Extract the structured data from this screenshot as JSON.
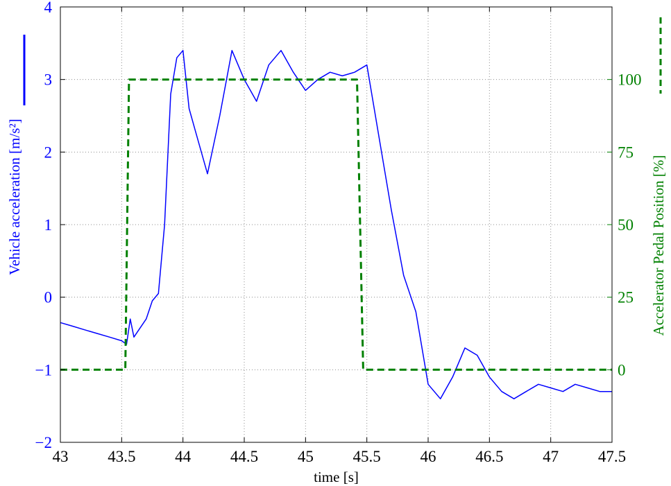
{
  "chart_data": {
    "type": "line",
    "title": "",
    "xlabel": "time [s]",
    "ylabel_left": "Vehicle acceleration [m/s²]",
    "ylabel_right": "Accelerator Pedal Position [%]",
    "xlim": [
      43,
      47.5
    ],
    "ylim_left": [
      -2,
      4
    ],
    "ylim_right": [
      -25,
      125
    ],
    "x_ticks": [
      "43",
      "43.5",
      "44",
      "44.5",
      "45",
      "45.5",
      "46",
      "46.5",
      "47",
      "47.5"
    ],
    "y_ticks_left": [
      "−2",
      "−1",
      "0",
      "1",
      "2",
      "3",
      "4"
    ],
    "y_ticks_right": [
      "0",
      "25",
      "50",
      "75",
      "100"
    ],
    "grid": true,
    "colors": {
      "acceleration": "#0000ff",
      "pedal": "#008000"
    },
    "series": [
      {
        "axis": "left",
        "style": "solid",
        "x": [
          43.0,
          43.1,
          43.2,
          43.3,
          43.4,
          43.5,
          43.54,
          43.57,
          43.6,
          43.7,
          43.75,
          43.8,
          43.85,
          43.9,
          43.95,
          44.0,
          44.05,
          44.1,
          44.2,
          44.3,
          44.4,
          44.5,
          44.6,
          44.7,
          44.8,
          44.9,
          45.0,
          45.1,
          45.2,
          45.3,
          45.4,
          45.5,
          45.6,
          45.7,
          45.8,
          45.9,
          46.0,
          46.1,
          46.2,
          46.3,
          46.4,
          46.5,
          46.6,
          46.7,
          46.8,
          46.9,
          47.0,
          47.1,
          47.2,
          47.3,
          47.4,
          47.5
        ],
        "y": [
          -0.35,
          -0.4,
          -0.45,
          -0.5,
          -0.55,
          -0.6,
          -0.65,
          -0.3,
          -0.55,
          -0.3,
          -0.05,
          0.05,
          1.0,
          2.8,
          3.3,
          3.4,
          2.6,
          2.3,
          1.7,
          2.5,
          3.4,
          3.0,
          2.7,
          3.2,
          3.4,
          3.1,
          2.85,
          3.0,
          3.1,
          3.05,
          3.1,
          3.2,
          2.2,
          1.2,
          0.3,
          -0.2,
          -1.2,
          -1.4,
          -1.1,
          -0.7,
          -0.8,
          -1.1,
          -1.3,
          -1.4,
          -1.3,
          -1.2,
          -1.25,
          -1.3,
          -1.2,
          -1.25,
          -1.3,
          -1.3
        ]
      },
      {
        "axis": "right",
        "style": "dashed",
        "x": [
          43.0,
          43.53,
          43.56,
          45.42,
          45.47,
          47.5
        ],
        "y": [
          0,
          0,
          100,
          100,
          0,
          0
        ]
      }
    ]
  }
}
